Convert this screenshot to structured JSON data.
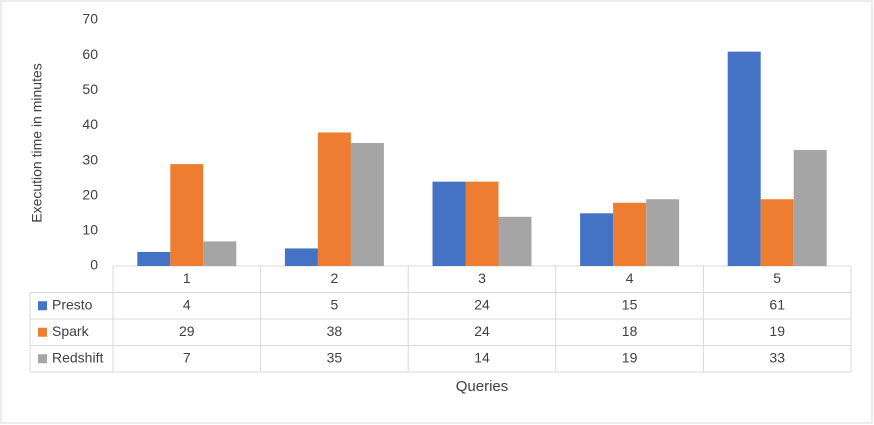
{
  "chart_data": {
    "type": "bar",
    "y_label": "Execution time in minutes",
    "x_label": "Queries",
    "categories": [
      "1",
      "2",
      "3",
      "4",
      "5"
    ],
    "series": [
      {
        "name": "Presto",
        "color": "#4472c4",
        "values": [
          4,
          5,
          24,
          15,
          61
        ]
      },
      {
        "name": "Spark",
        "color": "#ed7d31",
        "values": [
          29,
          38,
          24,
          18,
          19
        ]
      },
      {
        "name": "Redshift",
        "color": "#a5a5a5",
        "values": [
          7,
          35,
          14,
          19,
          33
        ]
      }
    ],
    "ylim": [
      0,
      70
    ],
    "yticks": [
      0,
      10,
      20,
      30,
      40,
      50,
      60,
      70
    ],
    "grid": false
  }
}
